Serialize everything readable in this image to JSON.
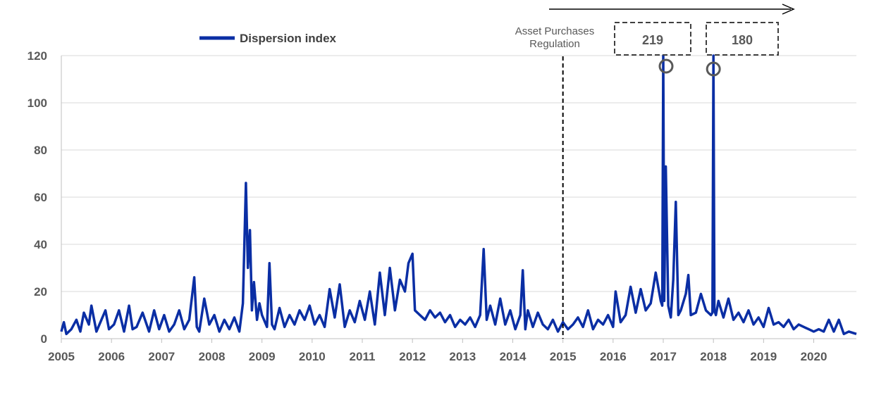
{
  "chart_data": {
    "type": "line",
    "title": "",
    "xlabel": "",
    "ylabel": "",
    "ylim": [
      0,
      120
    ],
    "xlim": [
      2005,
      2020.85
    ],
    "yticks": [
      "0",
      "20",
      "40",
      "60",
      "80",
      "100",
      "120"
    ],
    "xticks": [
      "2005",
      "2006",
      "2007",
      "2008",
      "2009",
      "2010",
      "2011",
      "2012",
      "2013",
      "2014",
      "2015",
      "2016",
      "2017",
      "2018",
      "2019",
      "2020"
    ],
    "grid": "horizontal",
    "legend": "top-left",
    "series": [
      {
        "name": "Dispersion index",
        "color": "#0a2ea4",
        "x": [
          2005.0,
          2005.05,
          2005.1,
          2005.2,
          2005.3,
          2005.38,
          2005.45,
          2005.55,
          2005.6,
          2005.7,
          2005.8,
          2005.88,
          2005.95,
          2006.05,
          2006.15,
          2006.25,
          2006.35,
          2006.42,
          2006.5,
          2006.62,
          2006.75,
          2006.85,
          2006.95,
          2007.05,
          2007.15,
          2007.25,
          2007.35,
          2007.45,
          2007.55,
          2007.65,
          2007.7,
          2007.75,
          2007.85,
          2007.95,
          2008.05,
          2008.15,
          2008.25,
          2008.35,
          2008.45,
          2008.55,
          2008.62,
          2008.68,
          2008.72,
          2008.76,
          2008.8,
          2008.84,
          2008.9,
          2008.95,
          2009.0,
          2009.1,
          2009.15,
          2009.2,
          2009.25,
          2009.35,
          2009.45,
          2009.55,
          2009.65,
          2009.75,
          2009.85,
          2009.95,
          2010.05,
          2010.15,
          2010.25,
          2010.35,
          2010.45,
          2010.55,
          2010.65,
          2010.75,
          2010.85,
          2010.95,
          2011.05,
          2011.15,
          2011.25,
          2011.35,
          2011.45,
          2011.55,
          2011.65,
          2011.75,
          2011.85,
          2011.92,
          2012.0,
          2012.05,
          2012.15,
          2012.25,
          2012.35,
          2012.45,
          2012.55,
          2012.65,
          2012.75,
          2012.85,
          2012.95,
          2013.05,
          2013.15,
          2013.25,
          2013.35,
          2013.42,
          2013.48,
          2013.55,
          2013.65,
          2013.75,
          2013.85,
          2013.95,
          2014.05,
          2014.15,
          2014.2,
          2014.25,
          2014.3,
          2014.4,
          2014.5,
          2014.6,
          2014.7,
          2014.8,
          2014.9,
          2015.0,
          2015.1,
          2015.2,
          2015.3,
          2015.4,
          2015.5,
          2015.6,
          2015.7,
          2015.8,
          2015.9,
          2016.0,
          2016.05,
          2016.15,
          2016.25,
          2016.35,
          2016.45,
          2016.55,
          2016.65,
          2016.75,
          2016.85,
          2016.95,
          2016.98,
          2017.0,
          2017.02,
          2017.05,
          2017.1,
          2017.15,
          2017.2,
          2017.25,
          2017.3,
          2017.35,
          2017.45,
          2017.5,
          2017.55,
          2017.65,
          2017.75,
          2017.85,
          2017.95,
          2017.98,
          2018.0,
          2018.02,
          2018.05,
          2018.1,
          2018.2,
          2018.3,
          2018.4,
          2018.5,
          2018.6,
          2018.7,
          2018.8,
          2018.9,
          2019.0,
          2019.1,
          2019.2,
          2019.3,
          2019.4,
          2019.5,
          2019.6,
          2019.7,
          2019.8,
          2019.9,
          2020.0,
          2020.1,
          2020.2,
          2020.3,
          2020.4,
          2020.5,
          2020.6,
          2020.7,
          2020.85
        ],
        "values": [
          3,
          7,
          2,
          4,
          8,
          3,
          11,
          6,
          14,
          3,
          8,
          12,
          4,
          6,
          12,
          3,
          14,
          4,
          5,
          11,
          3,
          12,
          4,
          10,
          3,
          6,
          12,
          4,
          8,
          26,
          5,
          3,
          17,
          6,
          10,
          3,
          8,
          4,
          9,
          3,
          15,
          66,
          30,
          46,
          12,
          24,
          8,
          15,
          10,
          5,
          32,
          6,
          4,
          13,
          5,
          10,
          6,
          12,
          8,
          14,
          6,
          10,
          5,
          21,
          9,
          23,
          5,
          12,
          7,
          16,
          8,
          20,
          6,
          28,
          10,
          30,
          12,
          25,
          20,
          32,
          36,
          12,
          10,
          8,
          12,
          9,
          11,
          7,
          10,
          5,
          8,
          6,
          9,
          5,
          10,
          38,
          8,
          14,
          6,
          17,
          6,
          12,
          4,
          10,
          29,
          4,
          12,
          5,
          11,
          6,
          4,
          8,
          3,
          7,
          4,
          6,
          9,
          5,
          12,
          4,
          8,
          6,
          10,
          5,
          20,
          7,
          10,
          22,
          11,
          21,
          12,
          15,
          28,
          16,
          14,
          219,
          16,
          73,
          14,
          9,
          25,
          58,
          10,
          12,
          19,
          27,
          10,
          11,
          19,
          12,
          10,
          11,
          180,
          12,
          10,
          16,
          9,
          17,
          8,
          11,
          7,
          12,
          6,
          9,
          5,
          13,
          6,
          7,
          5,
          8,
          4,
          6,
          5,
          4,
          3,
          4,
          3,
          8,
          3,
          8,
          2,
          3,
          2
        ]
      }
    ],
    "annotations": {
      "vline_x": 2015.0,
      "vline_label_line1": "Asset  Purchases",
      "vline_label_line2": "Regulation",
      "callouts": [
        {
          "x": 2017.0,
          "label": "219"
        },
        {
          "x": 2018.0,
          "label": "180"
        }
      ]
    }
  }
}
